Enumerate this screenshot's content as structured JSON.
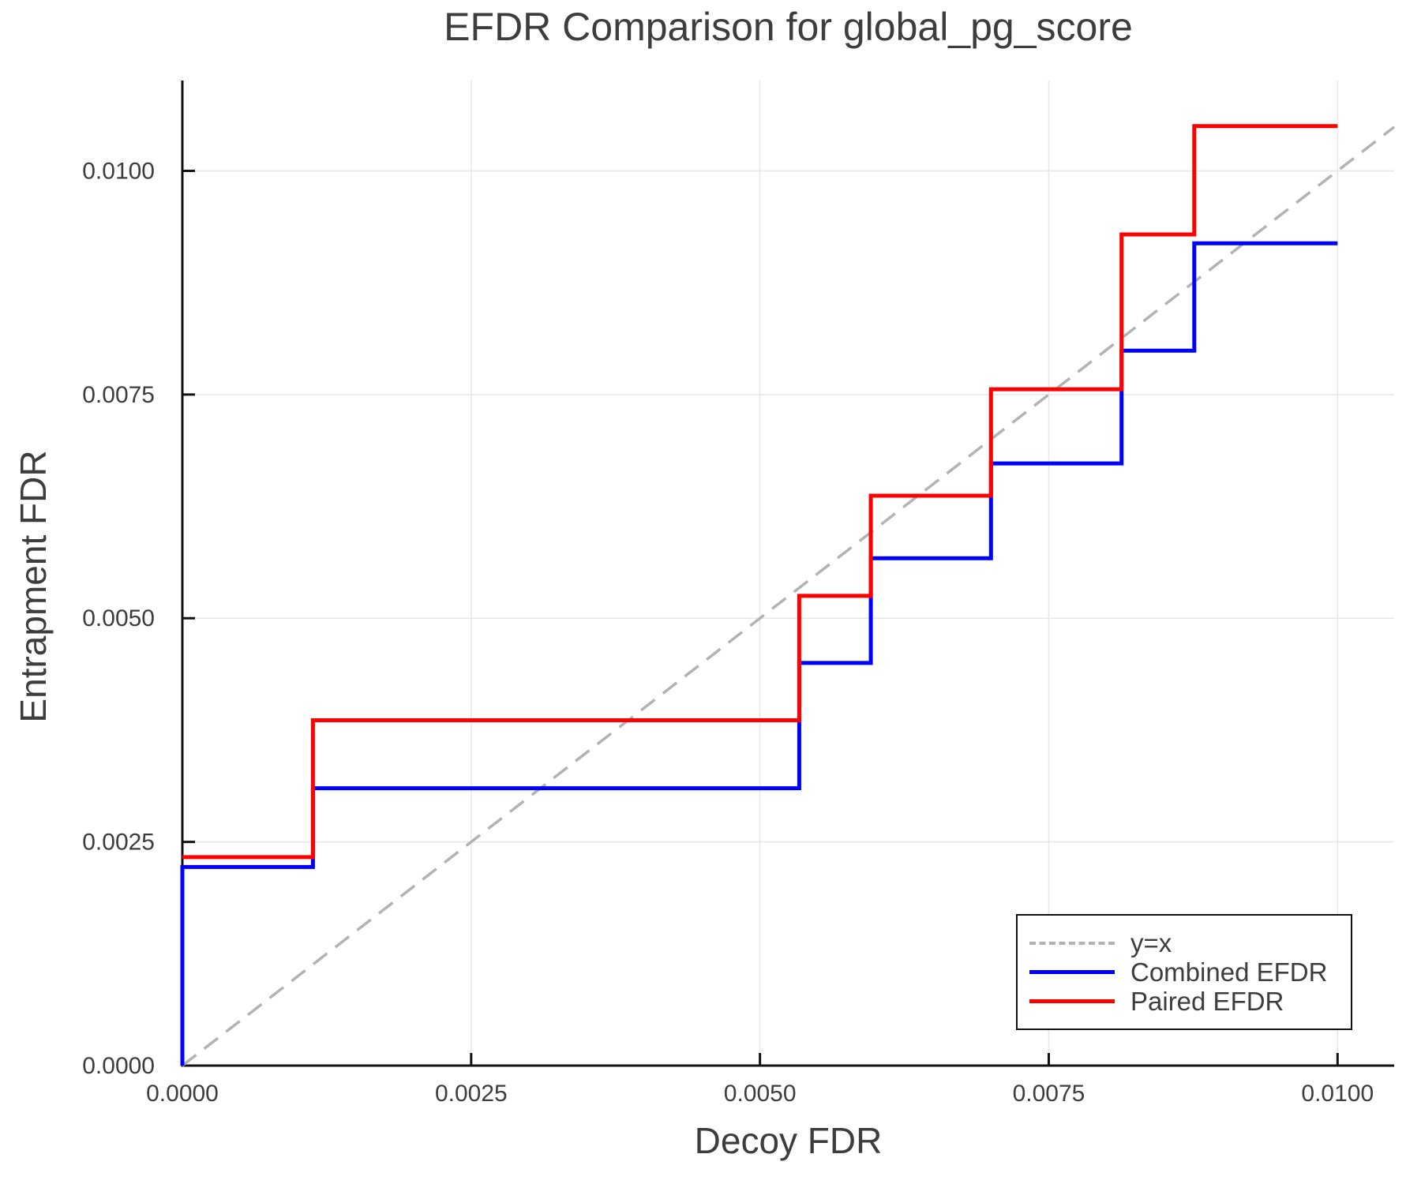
{
  "chart_data": {
    "type": "line",
    "title": "EFDR Comparison for global_pg_score",
    "xlabel": "Decoy FDR",
    "ylabel": "Entrapment FDR",
    "xlim": [
      0,
      0.01049
    ],
    "ylim": [
      0,
      0.01101
    ],
    "grid": true,
    "legend_position": "lower right",
    "x_ticks": {
      "values": [
        0,
        0.0025,
        0.005,
        0.0075,
        0.01
      ],
      "labels": [
        "0.0000",
        "0.0025",
        "0.0050",
        "0.0075",
        "0.0100"
      ]
    },
    "y_ticks": {
      "values": [
        0,
        0.0025,
        0.005,
        0.0075,
        0.01
      ],
      "labels": [
        "0.0000",
        "0.0025",
        "0.0050",
        "0.0075",
        "0.0100"
      ]
    },
    "colors": {
      "grid": "#e7e7e7",
      "spine": "#111111",
      "text": "#3d3d3d",
      "background": "#ffffff"
    },
    "series": [
      {
        "name": "y=x",
        "style": "dashed",
        "color": "#b3b3b3",
        "points": [
          [
            0,
            0
          ],
          [
            0.01049,
            0.01049
          ]
        ]
      },
      {
        "name": "Combined EFDR",
        "style": "solid",
        "color": "#0000ff",
        "points": [
          [
            0,
            0
          ],
          [
            0,
            0.00222
          ],
          [
            0.00113,
            0.00222
          ],
          [
            0.00113,
            0.0031
          ],
          [
            0.00534,
            0.0031
          ],
          [
            0.00534,
            0.0045
          ],
          [
            0.00596,
            0.0045
          ],
          [
            0.00596,
            0.00567
          ],
          [
            0.007,
            0.00567
          ],
          [
            0.007,
            0.00673
          ],
          [
            0.00813,
            0.00673
          ],
          [
            0.00813,
            0.00799
          ],
          [
            0.00876,
            0.00799
          ],
          [
            0.00876,
            0.00919
          ],
          [
            0.01,
            0.00919
          ]
        ]
      },
      {
        "name": "Paired EFDR",
        "style": "solid",
        "color": "#ff0000",
        "points": [
          [
            0,
            0.00233
          ],
          [
            0.00113,
            0.00233
          ],
          [
            0.00113,
            0.00386
          ],
          [
            0.00534,
            0.00386
          ],
          [
            0.00534,
            0.00525
          ],
          [
            0.00596,
            0.00525
          ],
          [
            0.00596,
            0.00637
          ],
          [
            0.007,
            0.00637
          ],
          [
            0.007,
            0.00756
          ],
          [
            0.00813,
            0.00756
          ],
          [
            0.00813,
            0.00929
          ],
          [
            0.00876,
            0.00929
          ],
          [
            0.00876,
            0.0105
          ],
          [
            0.01,
            0.0105
          ]
        ]
      }
    ]
  }
}
